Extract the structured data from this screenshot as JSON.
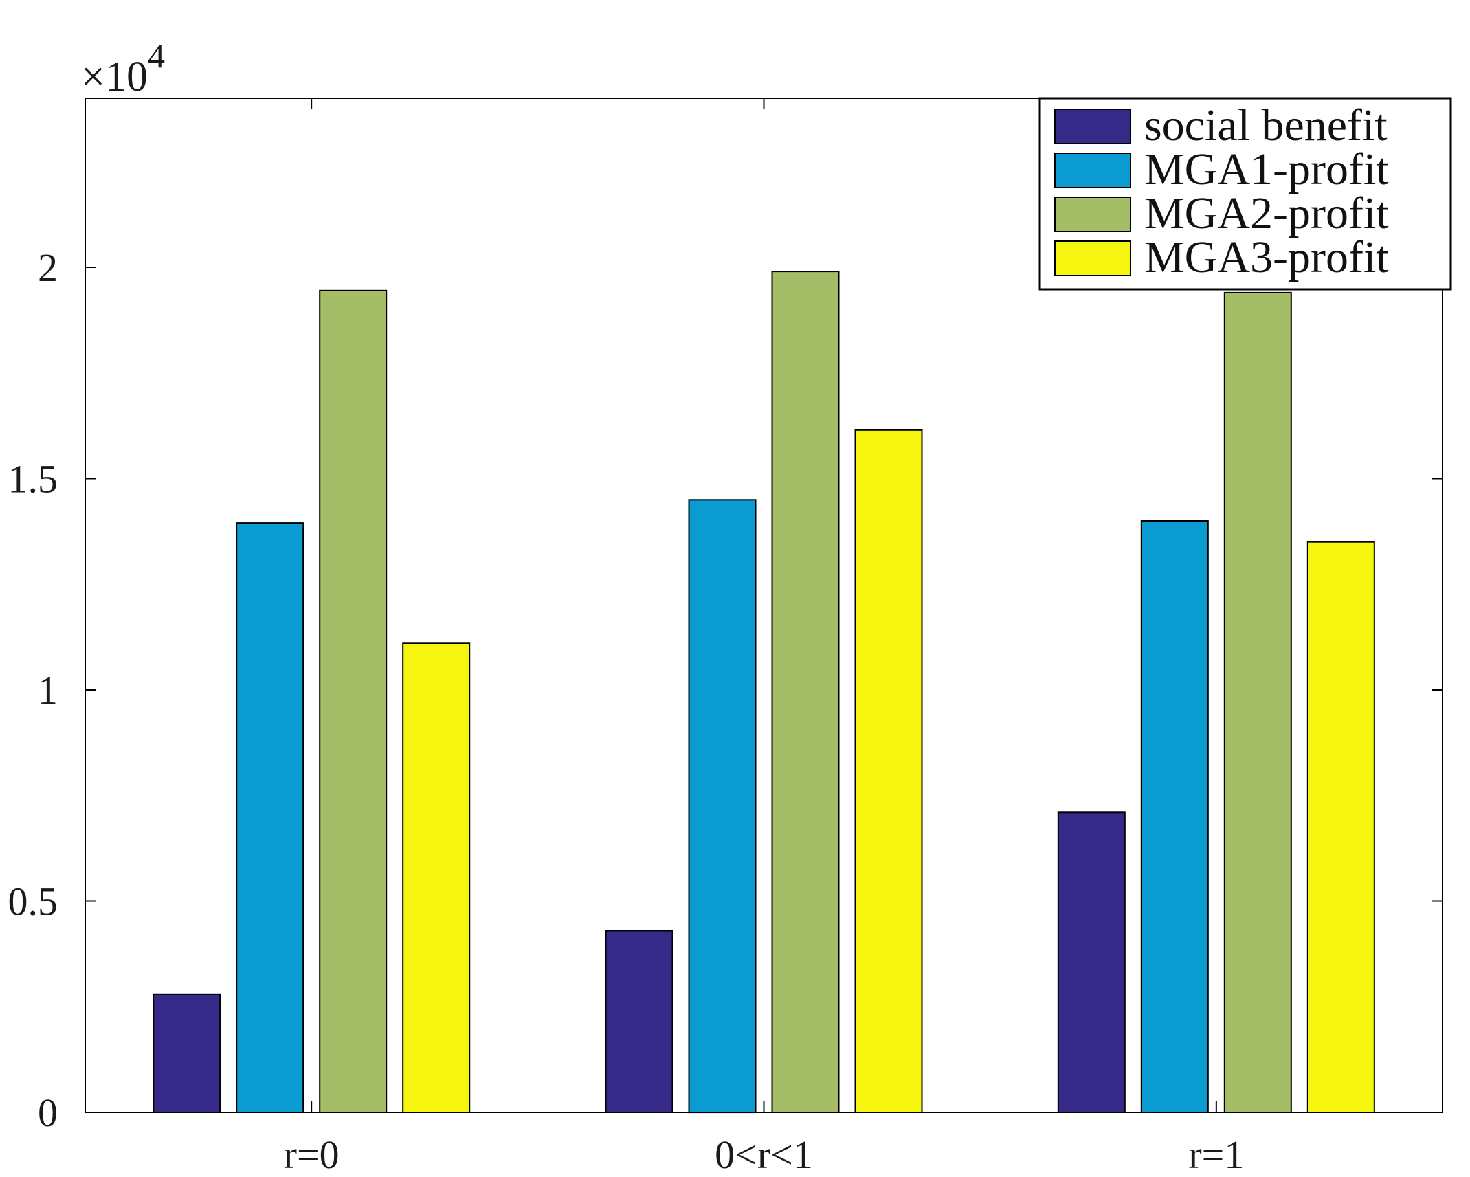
{
  "chart_data": {
    "type": "bar",
    "title": "",
    "xlabel": "",
    "ylabel": "",
    "multiplier": {
      "base": "×10",
      "exponent": "4"
    },
    "categories": [
      "r=0",
      "0<r<1",
      "r=1"
    ],
    "ylim": [
      0,
      2.4
    ],
    "yticks": [
      0,
      0.5,
      1,
      1.5,
      2
    ],
    "ytick_labels": [
      "0",
      "0.5",
      "1",
      "1.5",
      "2"
    ],
    "legend_position": "top-right",
    "series": [
      {
        "name": "social benefit",
        "color": "#352a87",
        "values": [
          0.28,
          0.43,
          0.71
        ]
      },
      {
        "name": "MGA1-profit",
        "color": "#0a9bd0",
        "values": [
          1.395,
          1.45,
          1.4
        ]
      },
      {
        "name": "MGA2-profit",
        "color": "#a5bd67",
        "values": [
          1.945,
          1.99,
          1.94
        ]
      },
      {
        "name": "MGA3-profit",
        "color": "#f5f50f",
        "values": [
          1.11,
          1.615,
          1.35
        ]
      }
    ]
  }
}
